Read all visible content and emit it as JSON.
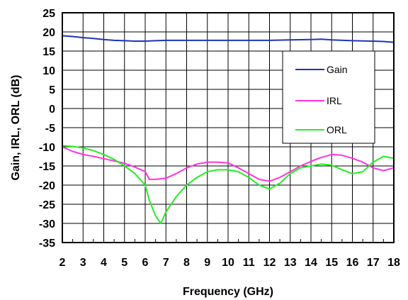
{
  "chart_data": {
    "type": "line",
    "xlabel": "Frequency (GHz)",
    "ylabel": "Gain, IRL, ORL (dB)",
    "xlim": [
      2,
      18
    ],
    "ylim": [
      -35,
      25
    ],
    "x_ticks": [
      2,
      3,
      4,
      5,
      6,
      7,
      8,
      9,
      10,
      11,
      12,
      13,
      14,
      15,
      16,
      17,
      18
    ],
    "y_ticks": [
      25,
      20,
      15,
      10,
      5,
      0,
      -5,
      -10,
      -15,
      -20,
      -25,
      -30,
      -35
    ],
    "grid": true,
    "legend_position": "right",
    "series": [
      {
        "name": "Gain",
        "color": "#1f35b5",
        "x": [
          2,
          2.5,
          3,
          3.5,
          4,
          4.5,
          5,
          5.5,
          6,
          6.5,
          7,
          8,
          9,
          10,
          11,
          12,
          13,
          14,
          14.5,
          15,
          16,
          17,
          17.5,
          18
        ],
        "y": [
          19.0,
          18.8,
          18.5,
          18.3,
          18.0,
          17.8,
          17.7,
          17.6,
          17.6,
          17.7,
          17.8,
          17.8,
          17.8,
          17.8,
          17.8,
          17.8,
          17.9,
          18.0,
          18.1,
          17.9,
          17.7,
          17.6,
          17.5,
          17.3
        ]
      },
      {
        "name": "IRL",
        "color": "#ff33dd",
        "x": [
          2,
          2.5,
          3,
          3.5,
          4,
          4.5,
          5,
          5.5,
          6,
          6.2,
          6.5,
          7,
          7.5,
          8,
          8.5,
          9,
          9.5,
          10,
          10.5,
          11,
          11.5,
          12,
          12.5,
          13,
          13.5,
          14,
          14.5,
          15,
          15.5,
          16,
          16.5,
          17,
          17.5,
          18
        ],
        "y": [
          -10,
          -11.2,
          -12,
          -12.5,
          -13.1,
          -13.7,
          -14.3,
          -15.3,
          -16.5,
          -18.5,
          -18.5,
          -18.2,
          -17,
          -15.5,
          -14.5,
          -14,
          -14,
          -14.2,
          -15.5,
          -17,
          -18.5,
          -19,
          -18,
          -16.5,
          -15,
          -13.8,
          -12.8,
          -12,
          -12.2,
          -13,
          -14,
          -15.5,
          -16.2,
          -15.5
        ]
      },
      {
        "name": "ORL",
        "color": "#22ee22",
        "x": [
          2,
          2.5,
          3,
          3.5,
          4,
          4.5,
          5,
          5.5,
          6,
          6.2,
          6.5,
          6.75,
          7,
          7.5,
          8,
          8.5,
          9,
          9.5,
          10,
          10.5,
          11,
          11.5,
          12,
          12.5,
          13,
          13.5,
          14,
          14.5,
          15,
          15.5,
          16,
          16.5,
          17,
          17.5,
          18
        ],
        "y": [
          -9.7,
          -9.9,
          -10.3,
          -11,
          -12,
          -13.3,
          -15,
          -17,
          -20,
          -24,
          -28,
          -30,
          -27,
          -23,
          -20,
          -18,
          -16.5,
          -16,
          -16,
          -16.5,
          -18,
          -20,
          -21,
          -19.5,
          -17,
          -15.5,
          -15,
          -14.5,
          -14.8,
          -16,
          -17,
          -16.5,
          -14,
          -12.5,
          -13
        ]
      }
    ]
  }
}
